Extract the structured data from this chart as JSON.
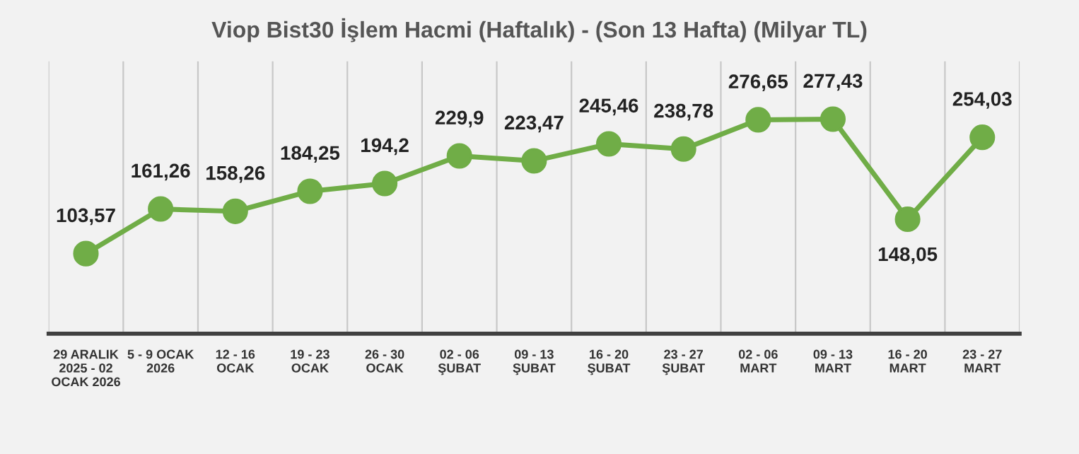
{
  "chart_data": {
    "type": "line",
    "title": "Viop Bist30 İşlem Hacmi (Haftalık) - (Son 13 Hafta) (Milyar TL)",
    "categories": [
      "29 ARALIK\n2025 - 02\nOCAK 2026",
      "5 - 9 OCAK\n2026",
      "12 - 16\nOCAK",
      "19 - 23\nOCAK",
      "26 - 30\nOCAK",
      "02 - 06\nŞUBAT",
      "09 - 13\nŞUBAT",
      "16 - 20\nŞUBAT",
      "23 - 27\nŞUBAT",
      "02 - 06\nMART",
      "09 - 13\nMART",
      "16 - 20\nMART",
      "23 - 27\nMART"
    ],
    "series": [
      {
        "color": "#70ad47",
        "values": [
          103.57,
          161.26,
          158.26,
          184.25,
          194.2,
          229.9,
          223.47,
          245.46,
          238.78,
          276.65,
          277.43,
          148.05,
          254.03
        ],
        "value_labels": [
          "103,57",
          "161,26",
          "158,26",
          "184,25",
          "194,2",
          "229,9",
          "223,47",
          "245,46",
          "238,78",
          "276,65",
          "277,43",
          "148,05",
          "254,03"
        ]
      }
    ],
    "marker": "circle",
    "line_style": "solid",
    "grid": "x",
    "legend": false
  }
}
